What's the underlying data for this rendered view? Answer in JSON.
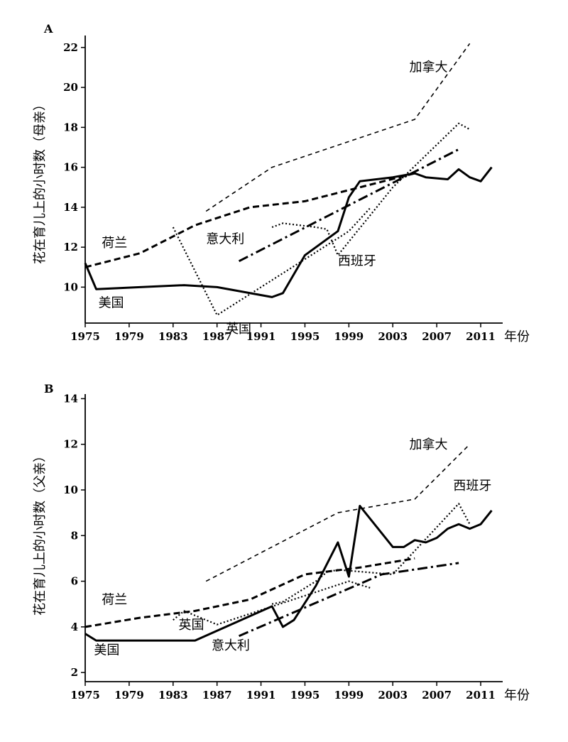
{
  "chart_data": [
    {
      "type": "line",
      "panel": "A",
      "ylabel": "花在育儿上的小时数（母亲）",
      "xunit": "年份",
      "ylim": [
        8.2,
        22.6
      ],
      "xlim": [
        1975,
        2013
      ],
      "yticks": [
        10,
        12,
        14,
        16,
        18,
        20,
        22
      ],
      "xticks": [
        1975,
        1979,
        1983,
        1987,
        1991,
        1995,
        1999,
        2003,
        2007,
        2011
      ],
      "series": [
        {
          "name": "美国",
          "style": "solid",
          "x": [
            1975,
            1976,
            1980,
            1984,
            1987,
            1992,
            1993,
            1995,
            1998,
            1999,
            2000,
            2003,
            2005,
            2006,
            2008,
            2009,
            2010,
            2011,
            2012
          ],
          "y": [
            11.2,
            9.9,
            10.0,
            10.1,
            10.0,
            9.5,
            9.7,
            11.6,
            12.8,
            14.5,
            15.3,
            15.5,
            15.7,
            15.5,
            15.4,
            15.9,
            15.5,
            15.3,
            16.0
          ]
        },
        {
          "name": "英国",
          "style": "dotted",
          "x": [
            1983,
            1987,
            1999,
            2001
          ],
          "y": [
            13.0,
            8.6,
            12.8,
            14.0
          ]
        },
        {
          "name": "西班牙",
          "style": "dotted",
          "x": [
            1992,
            1993,
            1996,
            1997,
            1998,
            2003,
            2009,
            2010
          ],
          "y": [
            13.0,
            13.2,
            13.0,
            12.9,
            11.6,
            15.0,
            18.2,
            17.9
          ]
        },
        {
          "name": "荷兰",
          "style": "dashed-heavy",
          "x": [
            1975,
            1980,
            1985,
            1990,
            1995,
            2000,
            2005
          ],
          "y": [
            11.0,
            11.7,
            13.1,
            14.0,
            14.3,
            15.0,
            15.7
          ]
        },
        {
          "name": "意大利",
          "style": "dashdot",
          "x": [
            1989,
            2009
          ],
          "y": [
            11.3,
            16.9
          ]
        },
        {
          "name": "加拿大",
          "style": "dashed-light",
          "x": [
            1986,
            1992,
            2005,
            2010
          ],
          "y": [
            13.8,
            16.0,
            18.4,
            22.2
          ]
        }
      ],
      "labels": [
        {
          "text": "加拿大",
          "x": 2004.5,
          "y": 20.8
        },
        {
          "text": "荷兰",
          "x": 1976.5,
          "y": 12.0
        },
        {
          "text": "意大利",
          "x": 1986,
          "y": 12.2
        },
        {
          "text": "西班牙",
          "x": 1998,
          "y": 11.1
        },
        {
          "text": "美国",
          "x": 1976.2,
          "y": 9.0
        },
        {
          "text": "英国",
          "x": 1987.8,
          "y": 7.7
        }
      ]
    },
    {
      "type": "line",
      "panel": "B",
      "ylabel": "花在育儿上的小时数（父亲）",
      "xunit": "年份",
      "ylim": [
        1.6,
        14.2
      ],
      "xlim": [
        1975,
        2013
      ],
      "yticks": [
        2,
        4,
        6,
        8,
        10,
        12,
        14
      ],
      "xticks": [
        1975,
        1979,
        1983,
        1987,
        1991,
        1995,
        1999,
        2003,
        2007,
        2011
      ],
      "series": [
        {
          "name": "美国",
          "style": "solid",
          "x": [
            1975,
            1976,
            1980,
            1985,
            1992,
            1993,
            1994,
            1996,
            1998,
            1999,
            2000,
            2003,
            2004,
            2005,
            2006,
            2007,
            2008,
            2009,
            2010,
            2011,
            2012
          ],
          "y": [
            3.7,
            3.4,
            3.4,
            3.4,
            4.9,
            4.0,
            4.3,
            5.8,
            7.7,
            6.2,
            9.3,
            7.5,
            7.5,
            7.8,
            7.7,
            7.9,
            8.3,
            8.5,
            8.3,
            8.5,
            9.1
          ]
        },
        {
          "name": "英国",
          "style": "dotted",
          "x": [
            1983,
            1984,
            1987,
            1999,
            2001
          ],
          "y": [
            4.3,
            4.7,
            4.1,
            6.0,
            5.7
          ]
        },
        {
          "name": "西班牙",
          "style": "dotted",
          "x": [
            1992,
            1993,
            1996,
            1997,
            1998,
            2003,
            2009,
            2010
          ],
          "y": [
            5.0,
            5.1,
            6.0,
            6.4,
            6.5,
            6.3,
            9.4,
            8.5
          ]
        },
        {
          "name": "荷兰",
          "style": "dashed-heavy",
          "x": [
            1975,
            1980,
            1985,
            1990,
            1995,
            2000,
            2005
          ],
          "y": [
            4.0,
            4.4,
            4.7,
            5.2,
            6.3,
            6.6,
            7.0
          ]
        },
        {
          "name": "意大利",
          "style": "dashdot",
          "x": [
            1989,
            2002,
            2009
          ],
          "y": [
            3.6,
            6.3,
            6.8
          ]
        },
        {
          "name": "加拿大",
          "style": "dashed-light",
          "x": [
            1986,
            1998,
            2005,
            2010
          ],
          "y": [
            6.0,
            9.0,
            9.6,
            12.0
          ]
        }
      ],
      "labels": [
        {
          "text": "加拿大",
          "x": 2004.5,
          "y": 11.8
        },
        {
          "text": "西班牙",
          "x": 2008.5,
          "y": 10.0
        },
        {
          "text": "荷兰",
          "x": 1976.5,
          "y": 5.0
        },
        {
          "text": "英国",
          "x": 1983.5,
          "y": 3.9
        },
        {
          "text": "美国",
          "x": 1975.8,
          "y": 2.8
        },
        {
          "text": "意大利",
          "x": 1986.5,
          "y": 3.0
        }
      ]
    }
  ]
}
